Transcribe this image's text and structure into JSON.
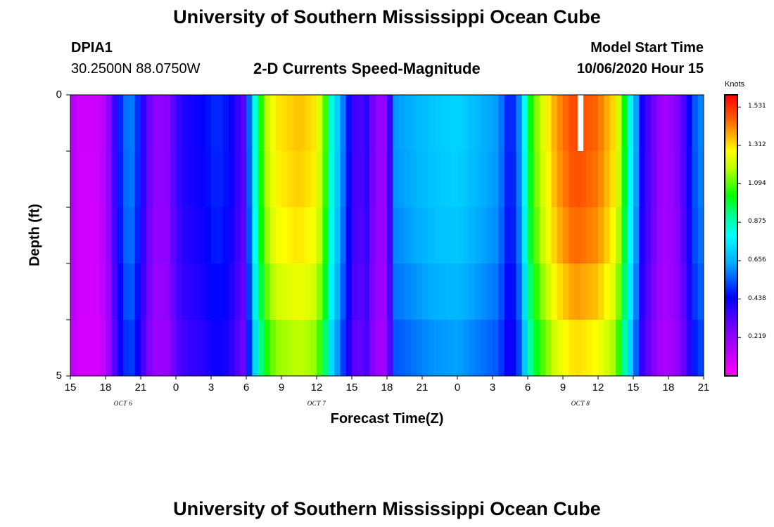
{
  "header": {
    "top_title": "University of Southern Mississippi Ocean Cube",
    "bottom_title": "University of Southern Mississippi Ocean Cube",
    "station_id": "DPIA1",
    "station_coords": "30.2500N 88.0750W",
    "model_start_label": "Model Start Time",
    "model_start_value": "10/06/2020 Hour 15"
  },
  "chart_data": {
    "type": "heatmap",
    "title": "2-D Currents Speed-Magnitude",
    "xlabel": "Forecast Time(Z)",
    "ylabel": "Depth (ft)",
    "units_label": "Knots",
    "x_start_hour": 15,
    "x_hours": 54,
    "x_tick_labels": [
      "15",
      "18",
      "21",
      "0",
      "3",
      "6",
      "9",
      "12",
      "15",
      "18",
      "21",
      "0",
      "3",
      "6",
      "9",
      "12",
      "15",
      "18",
      "21"
    ],
    "date_labels": [
      {
        "text": "OCT 6",
        "hour": 4.5
      },
      {
        "text": "OCT 7",
        "hour": 21
      },
      {
        "text": "OCT 8",
        "hour": 43.5
      }
    ],
    "y_range": [
      0,
      5
    ],
    "y_tick_labels": [
      "0",
      "5"
    ],
    "depth_levels": 5,
    "color_range": [
      0,
      1.6
    ],
    "colorbar_ticks": [
      "1.531",
      "1.312",
      "1.094",
      "0.875",
      "0.656",
      "0.438",
      "0.219"
    ],
    "colorbar_tick_values": [
      1.531,
      1.312,
      1.094,
      0.875,
      0.656,
      0.438,
      0.219
    ],
    "missing_cell": {
      "hour": 43.25,
      "layer": 0
    },
    "speed_profile": [
      {
        "h": 0,
        "v": 0.2
      },
      {
        "h": 0.5,
        "v": 0.1
      },
      {
        "h": 2.5,
        "v": 0.1
      },
      {
        "h": 3.2,
        "v": 0.2
      },
      {
        "h": 3.6,
        "v": 0.32
      },
      {
        "h": 4.3,
        "v": 0.5
      },
      {
        "h": 4.9,
        "v": 0.6
      },
      {
        "h": 5.4,
        "v": 0.58
      },
      {
        "h": 6.1,
        "v": 0.42
      },
      {
        "h": 6.6,
        "v": 0.3
      },
      {
        "h": 7.3,
        "v": 0.22
      },
      {
        "h": 8.4,
        "v": 0.24
      },
      {
        "h": 8.9,
        "v": 0.34
      },
      {
        "h": 9.6,
        "v": 0.4
      },
      {
        "h": 11.2,
        "v": 0.44
      },
      {
        "h": 12.5,
        "v": 0.5
      },
      {
        "h": 13.5,
        "v": 0.46
      },
      {
        "h": 14.2,
        "v": 0.38
      },
      {
        "h": 14.6,
        "v": 0.3
      },
      {
        "h": 15.0,
        "v": 0.35
      },
      {
        "h": 15.3,
        "v": 0.6
      },
      {
        "h": 15.6,
        "v": 0.75
      },
      {
        "h": 16,
        "v": 0.95
      },
      {
        "h": 16.5,
        "v": 1.15
      },
      {
        "h": 17.5,
        "v": 1.3
      },
      {
        "h": 19.5,
        "v": 1.35
      },
      {
        "h": 21,
        "v": 1.3
      },
      {
        "h": 21.7,
        "v": 1.1
      },
      {
        "h": 22.2,
        "v": 0.85
      },
      {
        "h": 22.8,
        "v": 0.7
      },
      {
        "h": 23.4,
        "v": 0.55
      },
      {
        "h": 24.0,
        "v": 0.4
      },
      {
        "h": 24.5,
        "v": 0.32
      },
      {
        "h": 25.3,
        "v": 0.38
      },
      {
        "h": 26.0,
        "v": 0.22
      },
      {
        "h": 27.0,
        "v": 0.22
      },
      {
        "h": 27.7,
        "v": 0.62
      },
      {
        "h": 29,
        "v": 0.65
      },
      {
        "h": 31,
        "v": 0.7
      },
      {
        "h": 33,
        "v": 0.72
      },
      {
        "h": 35,
        "v": 0.66
      },
      {
        "h": 36.5,
        "v": 0.62
      },
      {
        "h": 37.5,
        "v": 0.45
      },
      {
        "h": 38.2,
        "v": 0.58
      },
      {
        "h": 38.6,
        "v": 0.7
      },
      {
        "h": 39.0,
        "v": 0.95
      },
      {
        "h": 40,
        "v": 1.2
      },
      {
        "h": 41.5,
        "v": 1.4
      },
      {
        "h": 43,
        "v": 1.5
      },
      {
        "h": 45,
        "v": 1.45
      },
      {
        "h": 46.5,
        "v": 1.3
      },
      {
        "h": 47.3,
        "v": 1.0
      },
      {
        "h": 47.8,
        "v": 0.8
      },
      {
        "h": 48.3,
        "v": 0.62
      },
      {
        "h": 48.8,
        "v": 0.4
      },
      {
        "h": 49.6,
        "v": 0.3
      },
      {
        "h": 50.5,
        "v": 0.18
      },
      {
        "h": 51.5,
        "v": 0.22
      },
      {
        "h": 52.2,
        "v": 0.32
      },
      {
        "h": 52.8,
        "v": 0.45
      },
      {
        "h": 53.4,
        "v": 0.58
      },
      {
        "h": 54,
        "v": 0.6
      }
    ],
    "layer_factors": [
      1.0,
      0.99,
      0.97,
      0.93,
      0.88,
      0.8
    ]
  }
}
